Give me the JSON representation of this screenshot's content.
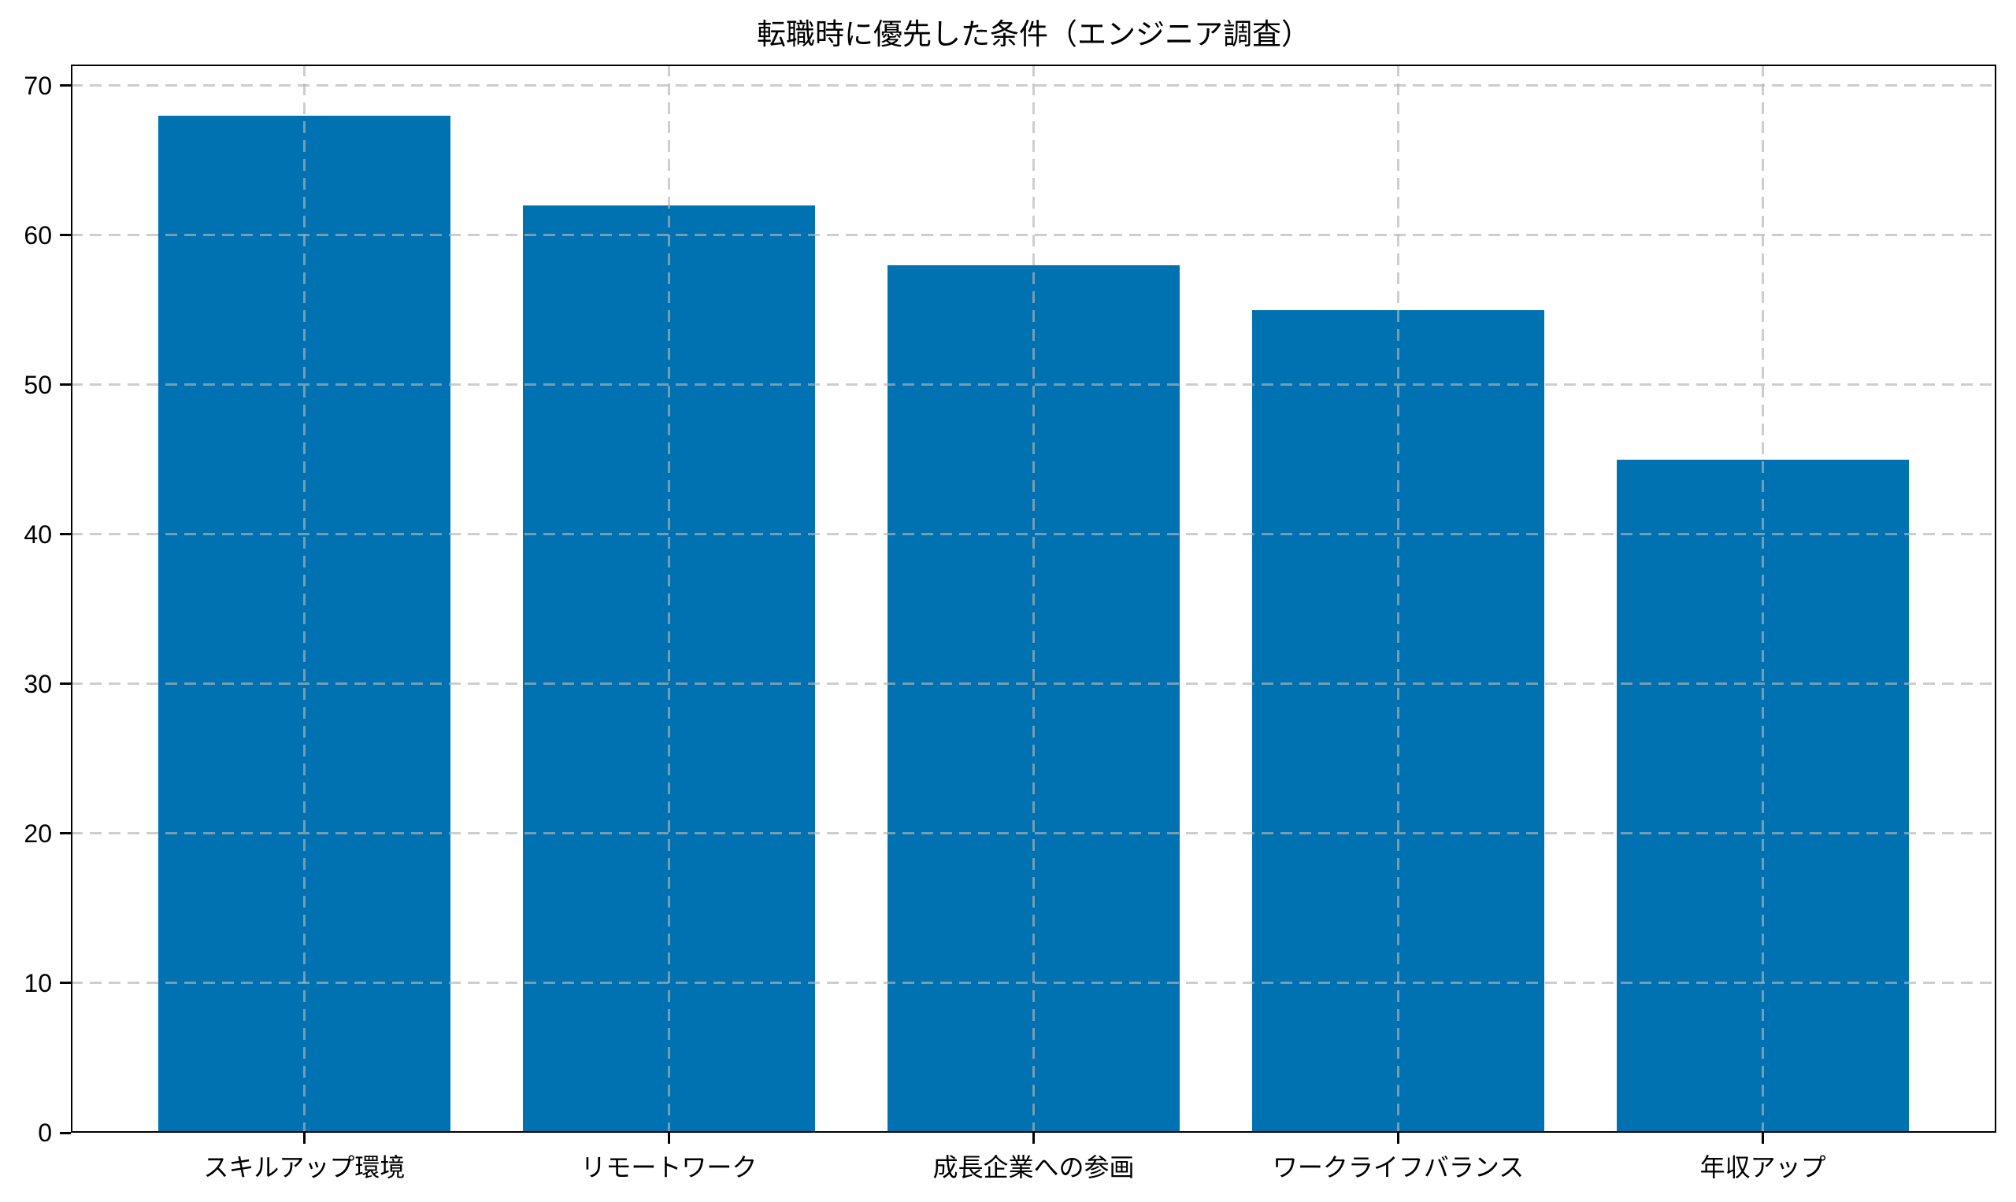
{
  "chart_data": {
    "type": "bar",
    "title": "転職時に優先した条件（エンジニア調査）",
    "categories": [
      "スキルアップ環境",
      "リモートワーク",
      "成長企業への参画",
      "ワークライフバランス",
      "年収アップ"
    ],
    "values": [
      68,
      62,
      58,
      55,
      45
    ],
    "xlabel": "",
    "ylabel": "",
    "ylim": [
      0,
      71.4
    ],
    "yticks": [
      0,
      10,
      20,
      30,
      40,
      50,
      60,
      70
    ],
    "legend": "none",
    "grid": "dashed-both-axes-above-bars",
    "bar_color": "#0072B1",
    "gridline_color": "rgba(180,180,180,0.65)",
    "axis_color": "#000000",
    "background_color": "#ffffff"
  }
}
